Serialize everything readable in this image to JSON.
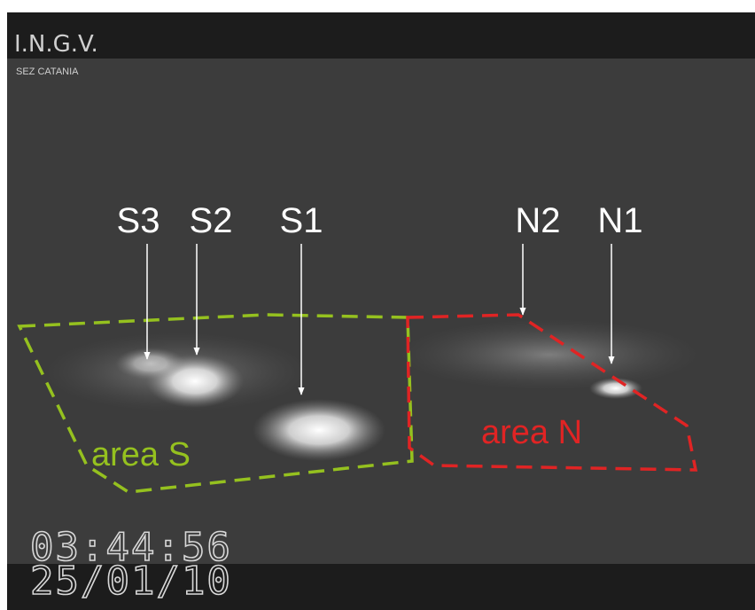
{
  "header": {
    "logo": "I.N.G.V.",
    "section": "SEZ CATANIA"
  },
  "vents": [
    {
      "label": "S3"
    },
    {
      "label": "S2"
    },
    {
      "label": "S1"
    },
    {
      "label": "N2"
    },
    {
      "label": "N1"
    }
  ],
  "areas": [
    {
      "label": "area S"
    },
    {
      "label": "area N"
    }
  ],
  "timestamp": {
    "time": "03:44:56",
    "date": "25/01/10"
  }
}
